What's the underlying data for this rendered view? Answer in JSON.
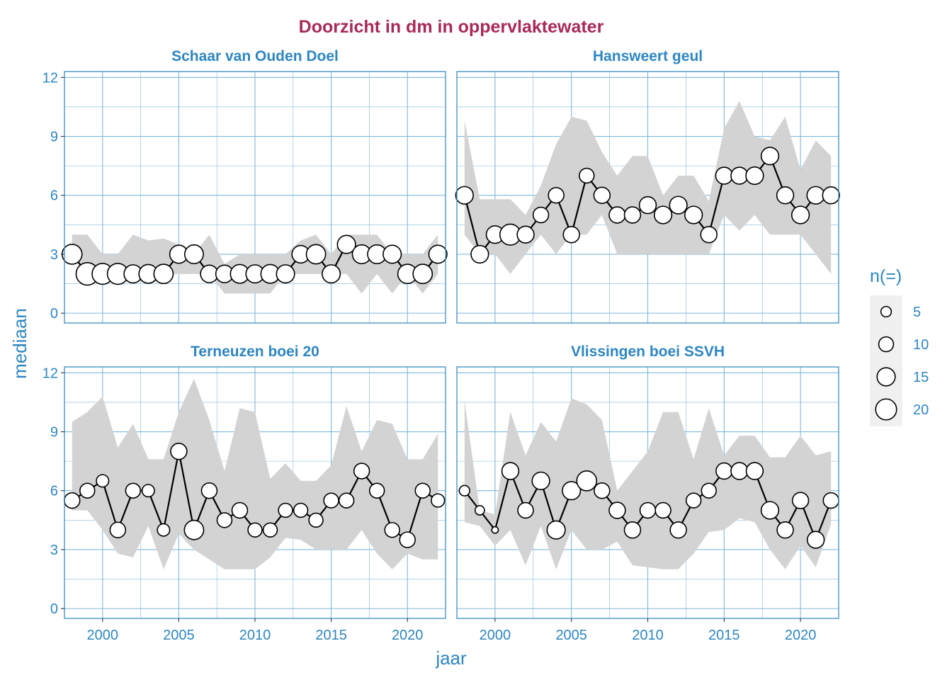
{
  "chart_data": {
    "type": "line",
    "title": "Doorzicht in dm in oppervlaktewater",
    "xlabel": "jaar",
    "ylabel": "mediaan",
    "xlim": [
      1997.5,
      2022.5
    ],
    "ylim": [
      -0.5,
      12.3
    ],
    "x_ticks": [
      2000,
      2005,
      2010,
      2015,
      2020
    ],
    "y_ticks": [
      0,
      3,
      6,
      9,
      12
    ],
    "grid": true,
    "legend": {
      "title": "n(=)",
      "placement": "right",
      "entries": [
        {
          "label": "5",
          "n": 5
        },
        {
          "label": "10",
          "n": 10
        },
        {
          "label": "15",
          "n": 15
        },
        {
          "label": "20",
          "n": 20
        }
      ]
    },
    "colors": {
      "title": "#A8295A",
      "accent": "#2E86C1",
      "panel_border": "#3A8FC4",
      "grid": "#7FB8DC",
      "ribbon": "#D3D3D3",
      "line": "#000000",
      "point_fill": "#FFFFFF"
    },
    "panels": [
      {
        "name": "Schaar van Ouden Doel",
        "x": [
          1998,
          1999,
          2000,
          2001,
          2002,
          2003,
          2004,
          2005,
          2006,
          2007,
          2008,
          2009,
          2010,
          2011,
          2012,
          2013,
          2014,
          2015,
          2016,
          2017,
          2018,
          2019,
          2020,
          2021,
          2022
        ],
        "median": [
          3,
          2,
          2,
          2,
          2,
          2,
          2,
          3,
          3,
          2,
          2,
          2,
          2,
          2,
          2,
          3,
          3,
          2,
          3.5,
          3,
          3,
          3,
          2,
          2,
          3
        ],
        "n": [
          18,
          23,
          20,
          20,
          15,
          16,
          17,
          15,
          16,
          14,
          14,
          16,
          15,
          16,
          15,
          14,
          17,
          15,
          15,
          16,
          16,
          15,
          17,
          17,
          15
        ],
        "lower": [
          3,
          2,
          2,
          2,
          2,
          1.5,
          2,
          2,
          2,
          2,
          1,
          1,
          1,
          1,
          2,
          2,
          2,
          2,
          2,
          1,
          2,
          1,
          2,
          1,
          2
        ],
        "upper": [
          4,
          4,
          3,
          3,
          4,
          3.7,
          3.8,
          3.5,
          3,
          4,
          2.5,
          3,
          3,
          3,
          3,
          3.7,
          4,
          3,
          4,
          4,
          4,
          3,
          3,
          3,
          4
        ]
      },
      {
        "name": "Hansweert geul",
        "x": [
          1998,
          1999,
          2000,
          2001,
          2002,
          2003,
          2004,
          2005,
          2006,
          2007,
          2008,
          2009,
          2010,
          2011,
          2012,
          2013,
          2014,
          2015,
          2016,
          2017,
          2018,
          2019,
          2020,
          2021,
          2022
        ],
        "median": [
          6,
          3,
          4,
          4,
          4,
          5,
          6,
          4,
          7,
          6,
          5,
          5,
          5.5,
          5,
          5.5,
          5,
          4,
          7,
          7,
          7,
          8,
          6,
          5,
          6,
          6
        ],
        "n": [
          14,
          14,
          14,
          20,
          13,
          11,
          11,
          12,
          10,
          12,
          12,
          12,
          13,
          14,
          14,
          14,
          12,
          13,
          13,
          14,
          14,
          13,
          14,
          14,
          13
        ],
        "lower": [
          4,
          3,
          3,
          2,
          3,
          4,
          3,
          4,
          4,
          5,
          3,
          3,
          3,
          3,
          3,
          3,
          3,
          5,
          4.2,
          5,
          4,
          4,
          4,
          3,
          2
        ],
        "upper": [
          9.8,
          5.8,
          5.8,
          5.8,
          5,
          6.5,
          8.6,
          10,
          9.8,
          8.2,
          7,
          8,
          8,
          6,
          7,
          7,
          5.7,
          9.4,
          10.8,
          9,
          8.8,
          10,
          7.3,
          8.8,
          8
        ]
      },
      {
        "name": "Terneuzen boei 20",
        "x": [
          1998,
          1999,
          2000,
          2001,
          2002,
          2003,
          2004,
          2005,
          2006,
          2007,
          2008,
          2009,
          2010,
          2011,
          2012,
          2013,
          2014,
          2015,
          2016,
          2017,
          2018,
          2019,
          2020,
          2021,
          2022
        ],
        "median": [
          5.5,
          6,
          6.5,
          4,
          6,
          6,
          4,
          8,
          4,
          6,
          4.5,
          5,
          4,
          4,
          5,
          5,
          4.5,
          5.5,
          5.5,
          7,
          6,
          4,
          3.5,
          6,
          5.5
        ],
        "n": [
          11,
          10,
          7,
          11,
          10,
          7,
          7,
          12,
          17,
          11,
          10,
          11,
          9,
          9,
          9,
          9,
          9,
          10,
          10,
          11,
          10,
          10,
          11,
          10,
          8
        ],
        "lower": [
          5,
          5,
          4,
          2.8,
          2.6,
          4.2,
          2,
          3.8,
          3,
          2.5,
          2,
          2,
          2,
          2.6,
          3.6,
          3.5,
          3,
          3,
          3,
          4,
          2.8,
          2,
          2.8,
          2.5,
          2.5
        ],
        "upper": [
          9.5,
          10,
          10.8,
          8.2,
          9.4,
          7.6,
          7.6,
          10,
          11.7,
          9.6,
          7,
          10.2,
          10,
          6.6,
          7.4,
          6.5,
          6.5,
          7.3,
          10.3,
          8,
          9.6,
          9.4,
          7.6,
          7.6,
          8.9
        ]
      },
      {
        "name": "Vlissingen boei SSVH",
        "x": [
          1998,
          1999,
          2000,
          2001,
          2002,
          2003,
          2004,
          2005,
          2006,
          2007,
          2008,
          2009,
          2010,
          2011,
          2012,
          2013,
          2014,
          2015,
          2016,
          2017,
          2018,
          2019,
          2020,
          2021,
          2022
        ],
        "median": [
          6,
          5,
          4,
          7,
          5,
          6.5,
          4,
          6,
          6.5,
          6,
          5,
          4,
          5,
          5,
          4,
          5.5,
          6,
          7,
          7,
          7,
          5,
          4,
          5.5,
          3.5,
          5.5
        ],
        "n": [
          5,
          4,
          2,
          13,
          11,
          14,
          15,
          15,
          18,
          11,
          12,
          12,
          11,
          11,
          12,
          10,
          10,
          12,
          13,
          13,
          14,
          12,
          12,
          13,
          11
        ],
        "lower": [
          4.4,
          4.2,
          3.2,
          4,
          2.2,
          4.2,
          2,
          4,
          3,
          3,
          3.4,
          2.2,
          2.1,
          2,
          2,
          2.8,
          3.9,
          4,
          4.6,
          4.4,
          3,
          2,
          3.2,
          2.1,
          4.3
        ],
        "upper": [
          10.6,
          5,
          4.8,
          10,
          7.8,
          9.5,
          8.5,
          10.7,
          10.4,
          9.6,
          6,
          7,
          8,
          10,
          10,
          7.6,
          10.2,
          7.8,
          8.8,
          8.8,
          7.7,
          7.7,
          8.8,
          7.8,
          8
        ]
      }
    ]
  }
}
